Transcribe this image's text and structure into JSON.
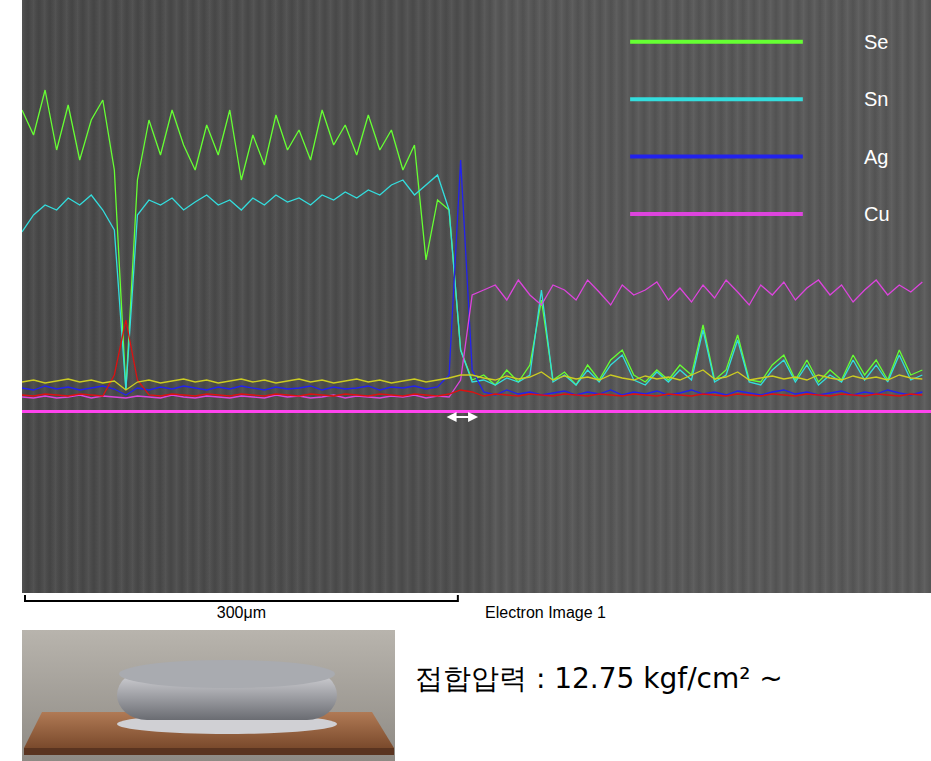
{
  "chart_data": {
    "type": "line",
    "x": [
      0,
      8,
      16,
      24,
      32,
      40,
      48,
      56,
      64,
      72,
      80,
      88,
      96,
      104,
      112,
      120,
      128,
      136,
      144,
      152,
      160,
      168,
      176,
      184,
      192,
      200,
      208,
      216,
      224,
      232,
      240,
      248,
      256,
      264,
      272,
      280,
      288,
      296,
      304,
      312,
      320,
      328,
      336,
      344,
      352,
      360,
      368,
      376,
      384,
      392,
      400,
      408,
      416,
      424,
      432,
      440,
      448,
      456,
      464,
      472,
      480,
      488,
      496,
      504,
      512,
      520,
      528,
      536,
      544,
      552,
      560,
      568,
      576,
      584,
      592,
      600,
      608,
      616,
      624
    ],
    "series": [
      {
        "name": "Se",
        "color": "#66ff33",
        "values": [
          300,
          275,
          320,
          260,
          305,
          250,
          290,
          310,
          240,
          20,
          230,
          290,
          255,
          300,
          265,
          240,
          285,
          255,
          300,
          230,
          275,
          245,
          295,
          260,
          280,
          250,
          300,
          265,
          285,
          255,
          295,
          260,
          280,
          240,
          265,
          150,
          210,
          200,
          60,
          30,
          35,
          25,
          40,
          28,
          45,
          110,
          30,
          38,
          25,
          45,
          30,
          50,
          60,
          35,
          28,
          40,
          30,
          45,
          35,
          85,
          30,
          40,
          75,
          30,
          28,
          45,
          55,
          30,
          50,
          28,
          40,
          30,
          55,
          35,
          50,
          30,
          60,
          35,
          40
        ]
      },
      {
        "name": "Sn",
        "color": "#33dddd",
        "values": [
          178,
          195,
          205,
          200,
          212,
          205,
          215,
          200,
          180,
          20,
          195,
          210,
          205,
          212,
          200,
          208,
          215,
          205,
          210,
          200,
          212,
          205,
          215,
          208,
          212,
          205,
          215,
          210,
          218,
          212,
          220,
          215,
          225,
          230,
          215,
          225,
          235,
          200,
          60,
          28,
          30,
          25,
          32,
          28,
          35,
          120,
          28,
          35,
          25,
          40,
          28,
          45,
          55,
          30,
          25,
          38,
          28,
          40,
          30,
          80,
          28,
          35,
          70,
          28,
          25,
          40,
          50,
          28,
          45,
          25,
          35,
          28,
          50,
          30,
          45,
          28,
          55,
          30,
          35
        ]
      },
      {
        "name": "Ag",
        "color": "#2222ee",
        "values": [
          22,
          20,
          24,
          21,
          23,
          20,
          22,
          24,
          21,
          15,
          22,
          20,
          23,
          21,
          24,
          22,
          20,
          23,
          21,
          24,
          22,
          20,
          23,
          21,
          22,
          24,
          20,
          23,
          21,
          22,
          24,
          20,
          23,
          22,
          24,
          21,
          23,
          35,
          250,
          40,
          18,
          15,
          20,
          16,
          18,
          15,
          17,
          19,
          15,
          18,
          16,
          20,
          15,
          18,
          16,
          19,
          15,
          17,
          20,
          16,
          18,
          15,
          19,
          17,
          15,
          18,
          20,
          16,
          18,
          15,
          17,
          19,
          15,
          18,
          16,
          20,
          17,
          15,
          18
        ]
      },
      {
        "name": "Cu",
        "color": "#dd44dd",
        "values": [
          13,
          12,
          14,
          12,
          13,
          15,
          12,
          14,
          13,
          12,
          14,
          13,
          12,
          15,
          13,
          12,
          14,
          13,
          12,
          14,
          13,
          12,
          15,
          13,
          14,
          12,
          13,
          15,
          12,
          14,
          13,
          12,
          14,
          13,
          15,
          12,
          14,
          13,
          30,
          115,
          120,
          125,
          110,
          130,
          115,
          105,
          125,
          120,
          110,
          130,
          118,
          105,
          125,
          115,
          120,
          128,
          110,
          122,
          108,
          125,
          112,
          130,
          118,
          105,
          125,
          115,
          128,
          110,
          122,
          130,
          115,
          125,
          108,
          120,
          130,
          115,
          125,
          118,
          128
        ]
      },
      {
        "color": "#dd1111",
        "values": [
          15,
          14,
          16,
          15,
          14,
          16,
          15,
          14,
          35,
          90,
          30,
          15,
          14,
          16,
          15,
          14,
          16,
          15,
          14,
          16,
          15,
          14,
          16,
          15,
          14,
          16,
          15,
          14,
          16,
          15,
          14,
          16,
          15,
          14,
          16,
          15,
          14,
          16,
          20,
          18,
          14,
          16,
          15,
          14,
          16,
          15,
          14,
          16,
          15,
          14,
          16,
          15,
          14,
          16,
          15,
          14,
          16,
          15,
          14,
          16,
          15,
          14,
          16,
          15,
          14,
          16,
          15,
          14,
          16,
          15,
          14,
          16,
          15,
          14,
          16,
          15,
          14,
          16,
          15
        ]
      },
      {
        "color": "#cccc22",
        "values": [
          28,
          30,
          27,
          29,
          31,
          28,
          30,
          27,
          29,
          20,
          28,
          30,
          27,
          29,
          31,
          28,
          30,
          27,
          29,
          31,
          28,
          30,
          27,
          29,
          31,
          28,
          30,
          27,
          29,
          31,
          28,
          30,
          27,
          29,
          31,
          28,
          30,
          32,
          35,
          35,
          32,
          30,
          34,
          31,
          33,
          38,
          30,
          34,
          31,
          33,
          30,
          35,
          32,
          30,
          34,
          31,
          33,
          30,
          35,
          40,
          31,
          33,
          38,
          30,
          32,
          34,
          31,
          33,
          30,
          35,
          32,
          30,
          34,
          31,
          33,
          30,
          35,
          32,
          31
        ]
      }
    ],
    "xlim": [
      0,
      630
    ],
    "ylim": [
      0,
      410
    ],
    "tick_labels": false,
    "grid": false,
    "legend": "top right",
    "scale_bar": {
      "label": "300μm",
      "length": 300
    },
    "annotations": [
      {
        "text": "Electron Image 1"
      }
    ]
  },
  "caption": "접합압력 : 12.75 kgf/cm² ~"
}
